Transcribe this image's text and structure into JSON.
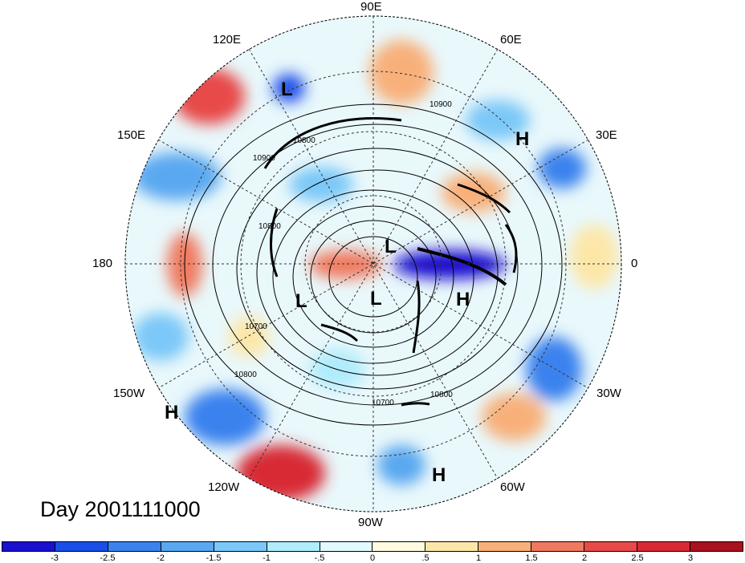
{
  "title": "Day 2001111000",
  "longitude_labels": [
    {
      "id": "lon-90e",
      "text": "90E"
    },
    {
      "id": "lon-60e",
      "text": "60E"
    },
    {
      "id": "lon-30e",
      "text": "30E"
    },
    {
      "id": "lon-0",
      "text": "0"
    },
    {
      "id": "lon-30w",
      "text": "30W"
    },
    {
      "id": "lon-60w",
      "text": "60W"
    },
    {
      "id": "lon-90w",
      "text": "90W"
    },
    {
      "id": "lon-120w",
      "text": "120W"
    },
    {
      "id": "lon-150w",
      "text": "150W"
    },
    {
      "id": "lon-180",
      "text": "180"
    },
    {
      "id": "lon-150e",
      "text": "150E"
    },
    {
      "id": "lon-120e",
      "text": "120E"
    }
  ],
  "markers": [
    {
      "id": "low-1",
      "text": "L"
    },
    {
      "id": "low-2",
      "text": "L"
    },
    {
      "id": "low-3",
      "text": "L"
    },
    {
      "id": "low-4",
      "text": "L"
    },
    {
      "id": "high-1",
      "text": "H"
    },
    {
      "id": "high-2",
      "text": "H"
    },
    {
      "id": "high-3",
      "text": "H"
    },
    {
      "id": "high-4",
      "text": "H"
    }
  ],
  "contour_labels": [
    "10900",
    "10900",
    "10800",
    "10800",
    "10700",
    "10800",
    "10700",
    "10800"
  ],
  "colorbar": {
    "colors": [
      "#1a10d0",
      "#1a4ee8",
      "#3b82ee",
      "#5aa8f0",
      "#7cc8f8",
      "#b0ecfc",
      "#e2fbfe",
      "#fffbe0",
      "#fde7a8",
      "#f8b07a",
      "#f07a60",
      "#e84a48",
      "#d82a34",
      "#a8121e"
    ],
    "labels": [
      "-3",
      "-2.5",
      "-2",
      "-1.5",
      "-1",
      "-.5",
      "0",
      ".5",
      "1",
      "1.5",
      "2",
      "2.5",
      "3"
    ]
  }
}
